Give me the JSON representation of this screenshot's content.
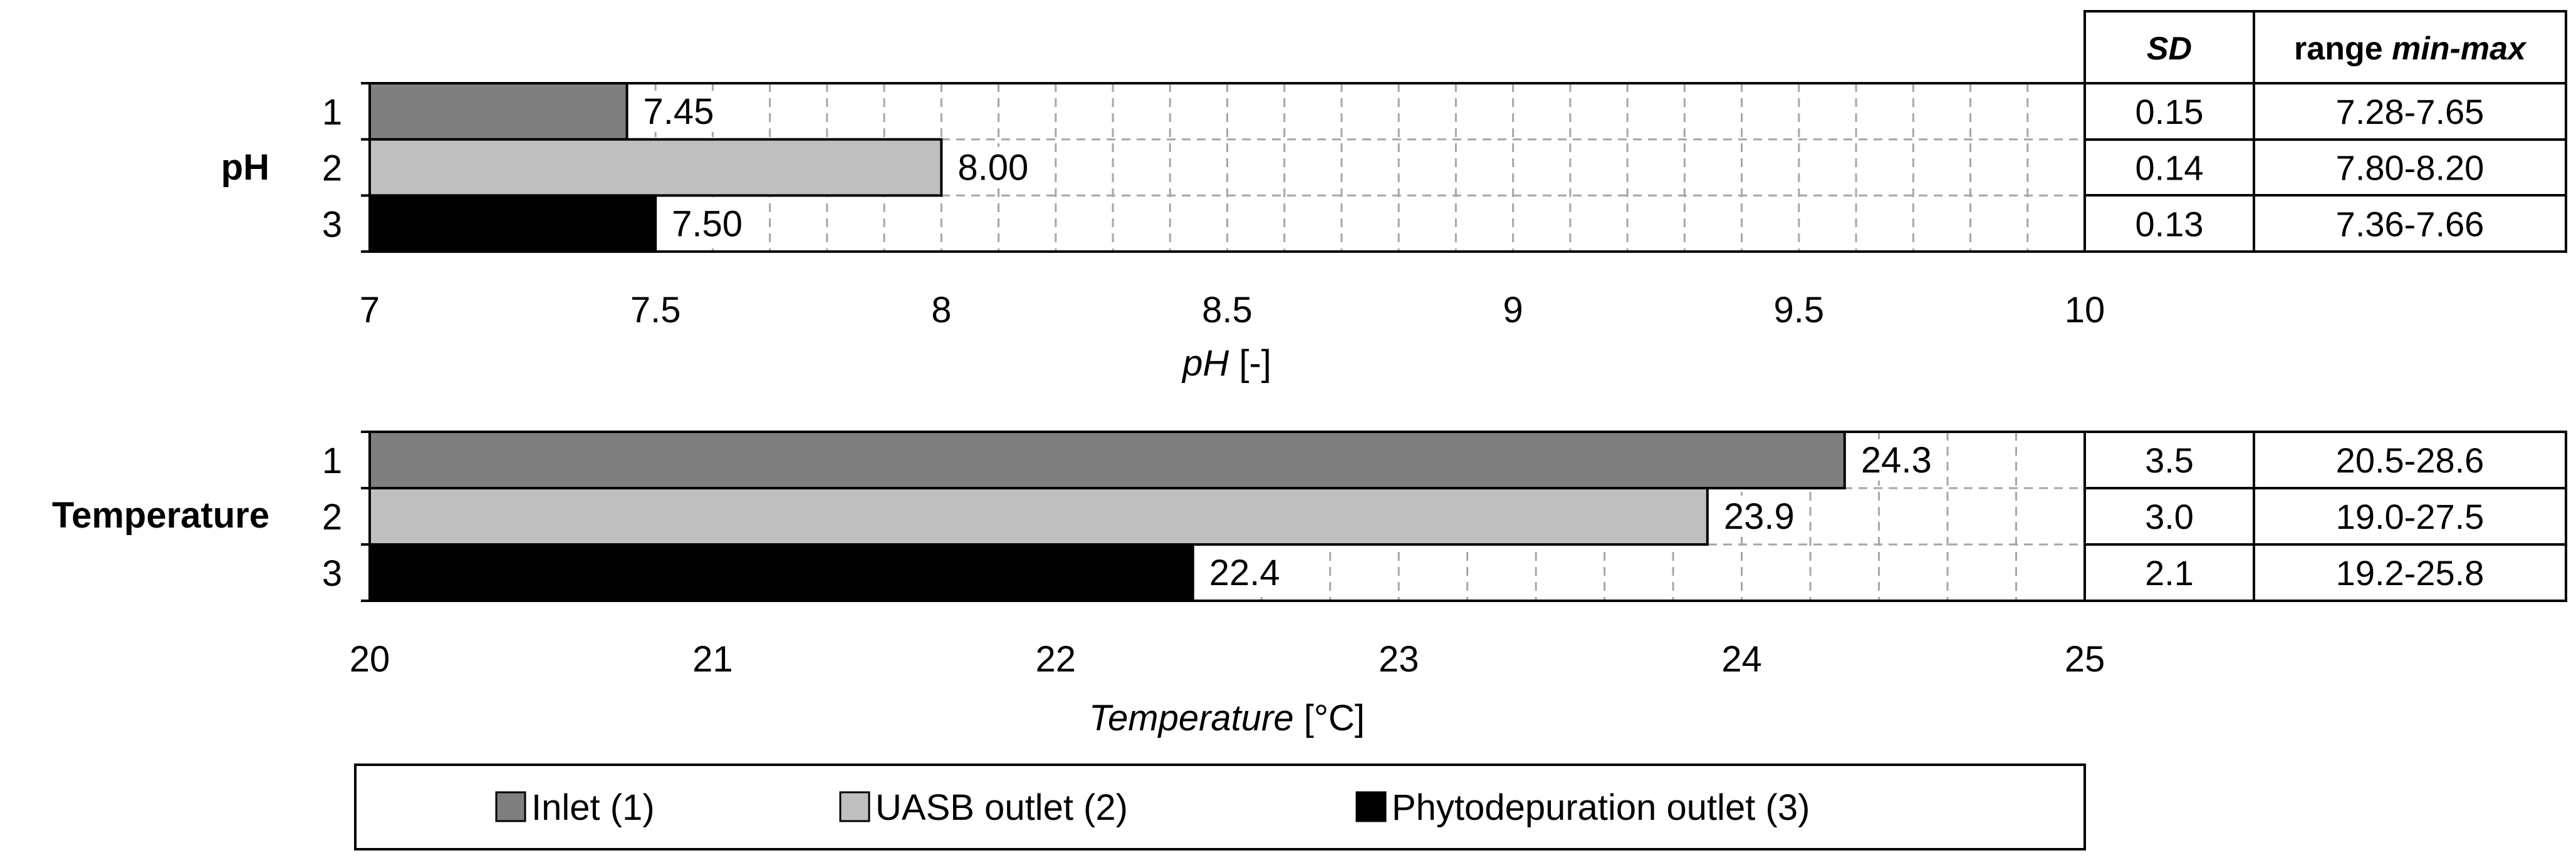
{
  "chart_data": [
    {
      "type": "bar",
      "orientation": "horizontal",
      "group_label": "pH",
      "categories": [
        "1",
        "2",
        "3"
      ],
      "values": [
        7.45,
        8.0,
        7.5
      ],
      "value_labels": [
        "7.45",
        "8.00",
        "7.50"
      ],
      "colors": [
        "#7f7f7f",
        "#bfbfbf",
        "#000000"
      ],
      "xlabel_italic": "pH",
      "xlabel_rest": " [-]",
      "xlim": [
        7,
        10
      ],
      "tick_labels": [
        "7",
        "7.5",
        "8",
        "8.5",
        "9",
        "9.5",
        "10"
      ],
      "minor_gridline_step": 0.1,
      "grid": true,
      "table": {
        "rows": [
          {
            "sd": "0.15",
            "range": "7.28-7.65"
          },
          {
            "sd": "0.14",
            "range": "7.80-8.20"
          },
          {
            "sd": "0.13",
            "range": "7.36-7.66"
          }
        ]
      }
    },
    {
      "type": "bar",
      "orientation": "horizontal",
      "group_label": "Temperature",
      "categories": [
        "1",
        "2",
        "3"
      ],
      "values": [
        24.3,
        23.9,
        22.4
      ],
      "value_labels": [
        "24.3",
        "23.9",
        "22.4"
      ],
      "colors": [
        "#7f7f7f",
        "#bfbfbf",
        "#000000"
      ],
      "xlabel_italic": "Temperature",
      "xlabel_rest": " [°C]",
      "xlim": [
        20,
        25
      ],
      "tick_labels": [
        "20",
        "21",
        "22",
        "23",
        "24",
        "25"
      ],
      "minor_gridline_step": 0.2,
      "grid": true,
      "table": {
        "rows": [
          {
            "sd": "3.5",
            "range": "20.5-28.6"
          },
          {
            "sd": "3.0",
            "range": "19.0-27.5"
          },
          {
            "sd": "2.1",
            "range": "19.2-25.8"
          }
        ]
      }
    }
  ],
  "table_header": {
    "sd": "SD",
    "range_prefix": "range ",
    "range_italic": "min-max"
  },
  "legend": {
    "placement": "bottom",
    "entries": [
      {
        "label": "Inlet (1)",
        "color": "#7f7f7f"
      },
      {
        "label": "UASB outlet (2)",
        "color": "#bfbfbf"
      },
      {
        "label": "Phytodepuration outlet (3)",
        "color": "#000000"
      }
    ]
  }
}
